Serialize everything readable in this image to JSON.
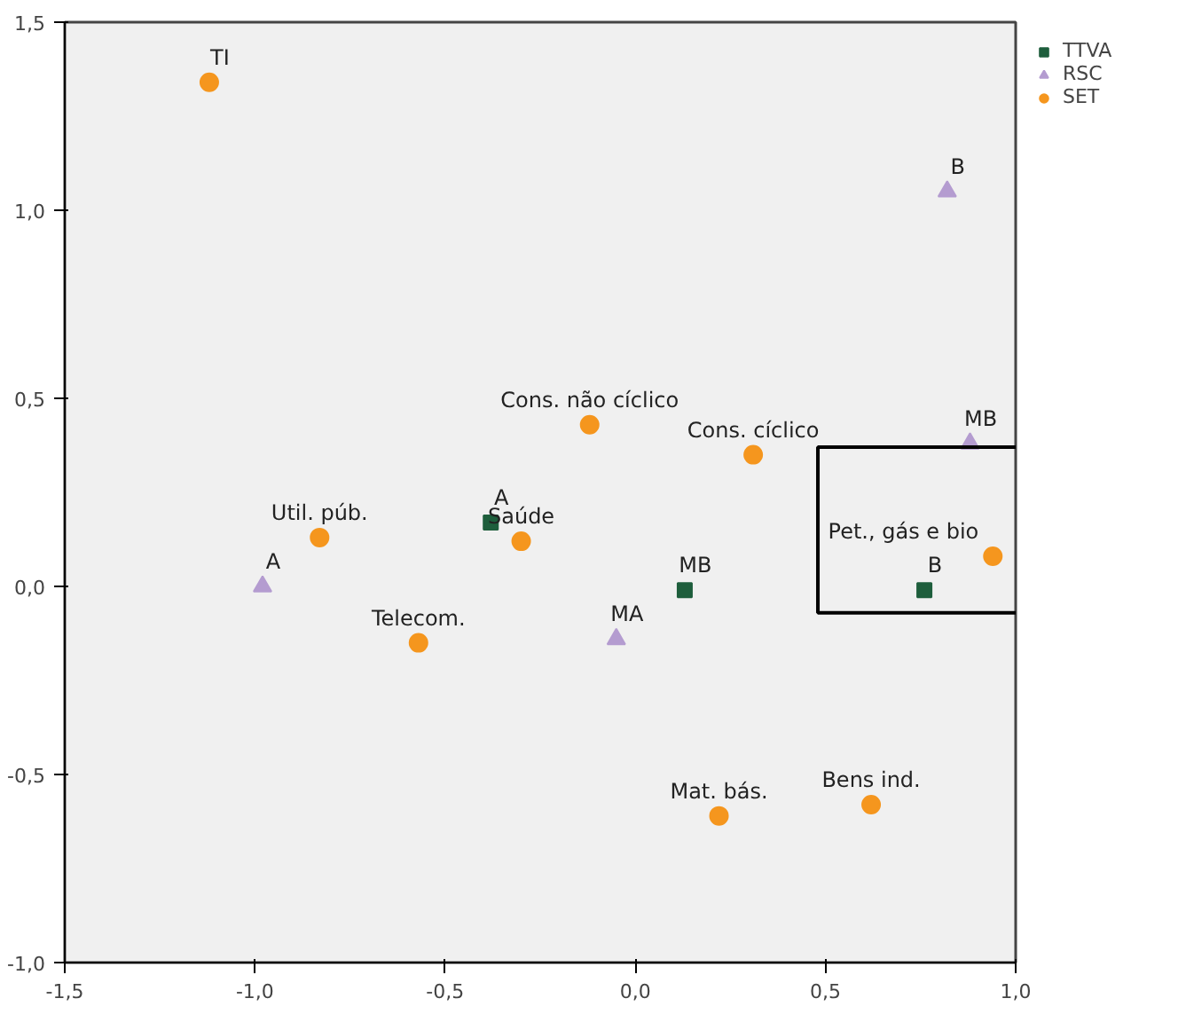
{
  "chart_data": {
    "type": "scatter",
    "xlim": [
      -1.5,
      1.0
    ],
    "ylim": [
      -1.0,
      1.5
    ],
    "xticks": [
      {
        "value": -1.5,
        "label": "-1,5"
      },
      {
        "value": -1.0,
        "label": "-1,0"
      },
      {
        "value": -0.5,
        "label": "-0,5"
      },
      {
        "value": 0.0,
        "label": "0,0"
      },
      {
        "value": 0.5,
        "label": "0,5"
      },
      {
        "value": 1.0,
        "label": "1,0"
      }
    ],
    "yticks": [
      {
        "value": -1.0,
        "label": "-1,0"
      },
      {
        "value": -0.5,
        "label": "-0,5"
      },
      {
        "value": 0.0,
        "label": "0,0"
      },
      {
        "value": 0.5,
        "label": "0,5"
      },
      {
        "value": 1.0,
        "label": "1,0"
      },
      {
        "value": 1.5,
        "label": "1,5"
      }
    ],
    "grid": false,
    "legend": "top right",
    "series": [
      {
        "name": "TTVA",
        "color": "#1e5e3c",
        "marker": "square",
        "x": [
          -0.38,
          0.13,
          0.76
        ],
        "values": [
          0.17,
          -0.01,
          -0.01
        ]
      },
      {
        "name": "RSC",
        "color": "#b49cd0",
        "marker": "triangle",
        "x": [
          -0.98,
          -0.05,
          0.82,
          0.88
        ],
        "values": [
          0.0,
          -0.14,
          1.05,
          0.38
        ]
      },
      {
        "name": "SET",
        "color": "#f5961e",
        "marker": "circle",
        "x": [
          -1.12,
          -0.12,
          0.31,
          0.94,
          -0.3,
          -0.83,
          -0.57,
          0.22,
          0.62
        ],
        "values": [
          1.34,
          0.43,
          0.35,
          0.08,
          0.12,
          0.13,
          -0.15,
          -0.61,
          -0.58
        ]
      }
    ],
    "annotations": [
      {
        "text": "A",
        "x": -0.38,
        "y": 0.17
      },
      {
        "text": "MB",
        "x": 0.13,
        "y": -0.01
      },
      {
        "text": "B",
        "x": 0.76,
        "y": -0.01
      },
      {
        "text": "A",
        "x": -0.98,
        "y": 0.0
      },
      {
        "text": "MA",
        "x": -0.05,
        "y": -0.14
      },
      {
        "text": "B",
        "x": 0.82,
        "y": 1.05
      },
      {
        "text": "MB",
        "x": 0.88,
        "y": 0.38
      },
      {
        "text": "TI",
        "x": -1.12,
        "y": 1.34
      },
      {
        "text": "Cons. não cíclico",
        "x": -0.12,
        "y": 0.43
      },
      {
        "text": "Cons. cíclico",
        "x": 0.31,
        "y": 0.35
      },
      {
        "text": "Pet., gás e bio",
        "x": 0.94,
        "y": 0.08
      },
      {
        "text": "Saúde",
        "x": -0.3,
        "y": 0.12
      },
      {
        "text": "Util. púb.",
        "x": -0.83,
        "y": 0.13
      },
      {
        "text": "Telecom.",
        "x": -0.57,
        "y": -0.15
      },
      {
        "text": "Mat. bás.",
        "x": 0.22,
        "y": -0.61
      },
      {
        "text": "Bens ind.",
        "x": 0.62,
        "y": -0.58
      }
    ]
  }
}
